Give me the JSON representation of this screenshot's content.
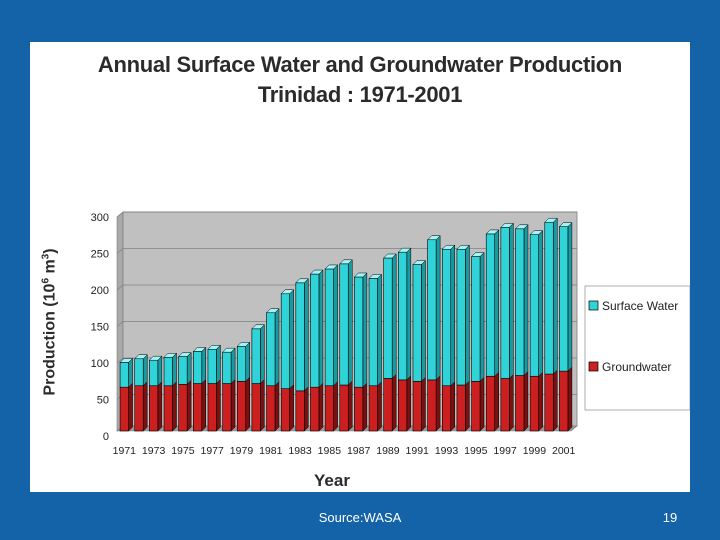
{
  "slide": {
    "source": "Source:WASA",
    "page_number": "19"
  },
  "chart_data": {
    "type": "bar",
    "stacked": true,
    "title": "Annual Surface Water and Groundwater Production",
    "subtitle": "Trinidad : 1971-2001",
    "xlabel": "Year",
    "ylabel_main": "Production (10",
    "ylabel_exp1": "6",
    "ylabel_mid": " m",
    "ylabel_exp2": "3",
    "ylabel_end": ")",
    "ylim": [
      0,
      300
    ],
    "yticks": [
      0,
      50,
      100,
      150,
      200,
      250,
      300
    ],
    "categories": [
      "1971",
      "1972",
      "1973",
      "1974",
      "1975",
      "1976",
      "1977",
      "1978",
      "1979",
      "1980",
      "1981",
      "1982",
      "1983",
      "1984",
      "1985",
      "1986",
      "1987",
      "1988",
      "1989",
      "1990",
      "1991",
      "1992",
      "1993",
      "1994",
      "1995",
      "1996",
      "1997",
      "1998",
      "1999",
      "2000",
      "2001"
    ],
    "xtick_labels": [
      "1971",
      "1973",
      "1975",
      "1977",
      "1979",
      "1981",
      "1983",
      "1985",
      "1987",
      "1989",
      "1991",
      "1993",
      "1995",
      "1997",
      "1999",
      "2001"
    ],
    "series": [
      {
        "name": "Groundwater",
        "color": "#cc1f1f",
        "values": [
          60,
          62,
          62,
          62,
          64,
          65,
          65,
          65,
          68,
          65,
          62,
          58,
          55,
          60,
          62,
          63,
          60,
          62,
          72,
          70,
          68,
          70,
          62,
          63,
          68,
          75,
          72,
          76,
          75,
          78,
          82
        ]
      },
      {
        "name": "Surface Water",
        "color": "#2fd3d8",
        "values": [
          34,
          37,
          35,
          39,
          38,
          44,
          47,
          43,
          48,
          75,
          100,
          130,
          148,
          155,
          160,
          166,
          151,
          147,
          165,
          175,
          160,
          192,
          187,
          186,
          171,
          195,
          207,
          201,
          194,
          208,
          198
        ]
      }
    ],
    "legend_position": "right",
    "colors": {
      "plot_bg": "#c0c0c0",
      "grid": "#808080",
      "axis_text": "#222222"
    }
  }
}
